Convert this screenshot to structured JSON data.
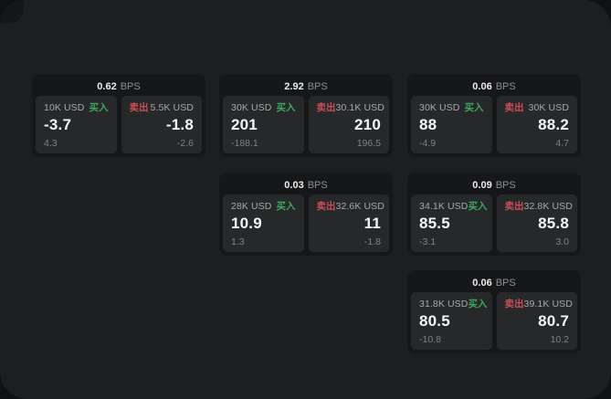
{
  "labels": {
    "bps_unit": "BPS",
    "buy": "买入",
    "sell": "卖出"
  },
  "colors": {
    "surface": "#1d1e1f",
    "card_background": "#161718",
    "panel_background": "#27282a",
    "buy_green": "#3fa65c",
    "sell_red": "#c94f57"
  },
  "cards": [
    {
      "col": 1,
      "row": 1,
      "bps": "0.62",
      "buy": {
        "amount": "10K USD",
        "price": "-3.7",
        "delta": "4.3"
      },
      "sell": {
        "amount": "5.5K USD",
        "price": "-1.8",
        "delta": "-2.6"
      }
    },
    {
      "col": 2,
      "row": 1,
      "bps": "2.92",
      "buy": {
        "amount": "30K USD",
        "price": "201",
        "delta": "-188.1"
      },
      "sell": {
        "amount": "30.1K USD",
        "price": "210",
        "delta": "196.5"
      }
    },
    {
      "col": 3,
      "row": 1,
      "bps": "0.06",
      "buy": {
        "amount": "30K USD",
        "price": "88",
        "delta": "-4.9"
      },
      "sell": {
        "amount": "30K USD",
        "price": "88.2",
        "delta": "4.7"
      }
    },
    {
      "col": 2,
      "row": 2,
      "bps": "0.03",
      "buy": {
        "amount": "28K USD",
        "price": "10.9",
        "delta": "1.3"
      },
      "sell": {
        "amount": "32.6K USD",
        "price": "11",
        "delta": "-1.8"
      }
    },
    {
      "col": 3,
      "row": 2,
      "bps": "0.09",
      "buy": {
        "amount": "34.1K USD",
        "price": "85.5",
        "delta": "-3.1"
      },
      "sell": {
        "amount": "32.8K USD",
        "price": "85.8",
        "delta": "3.0"
      }
    },
    {
      "col": 3,
      "row": 3,
      "bps": "0.06",
      "buy": {
        "amount": "31.8K USD",
        "price": "80.5",
        "delta": "-10.8"
      },
      "sell": {
        "amount": "39.1K USD",
        "price": "80.7",
        "delta": "10.2"
      }
    }
  ]
}
